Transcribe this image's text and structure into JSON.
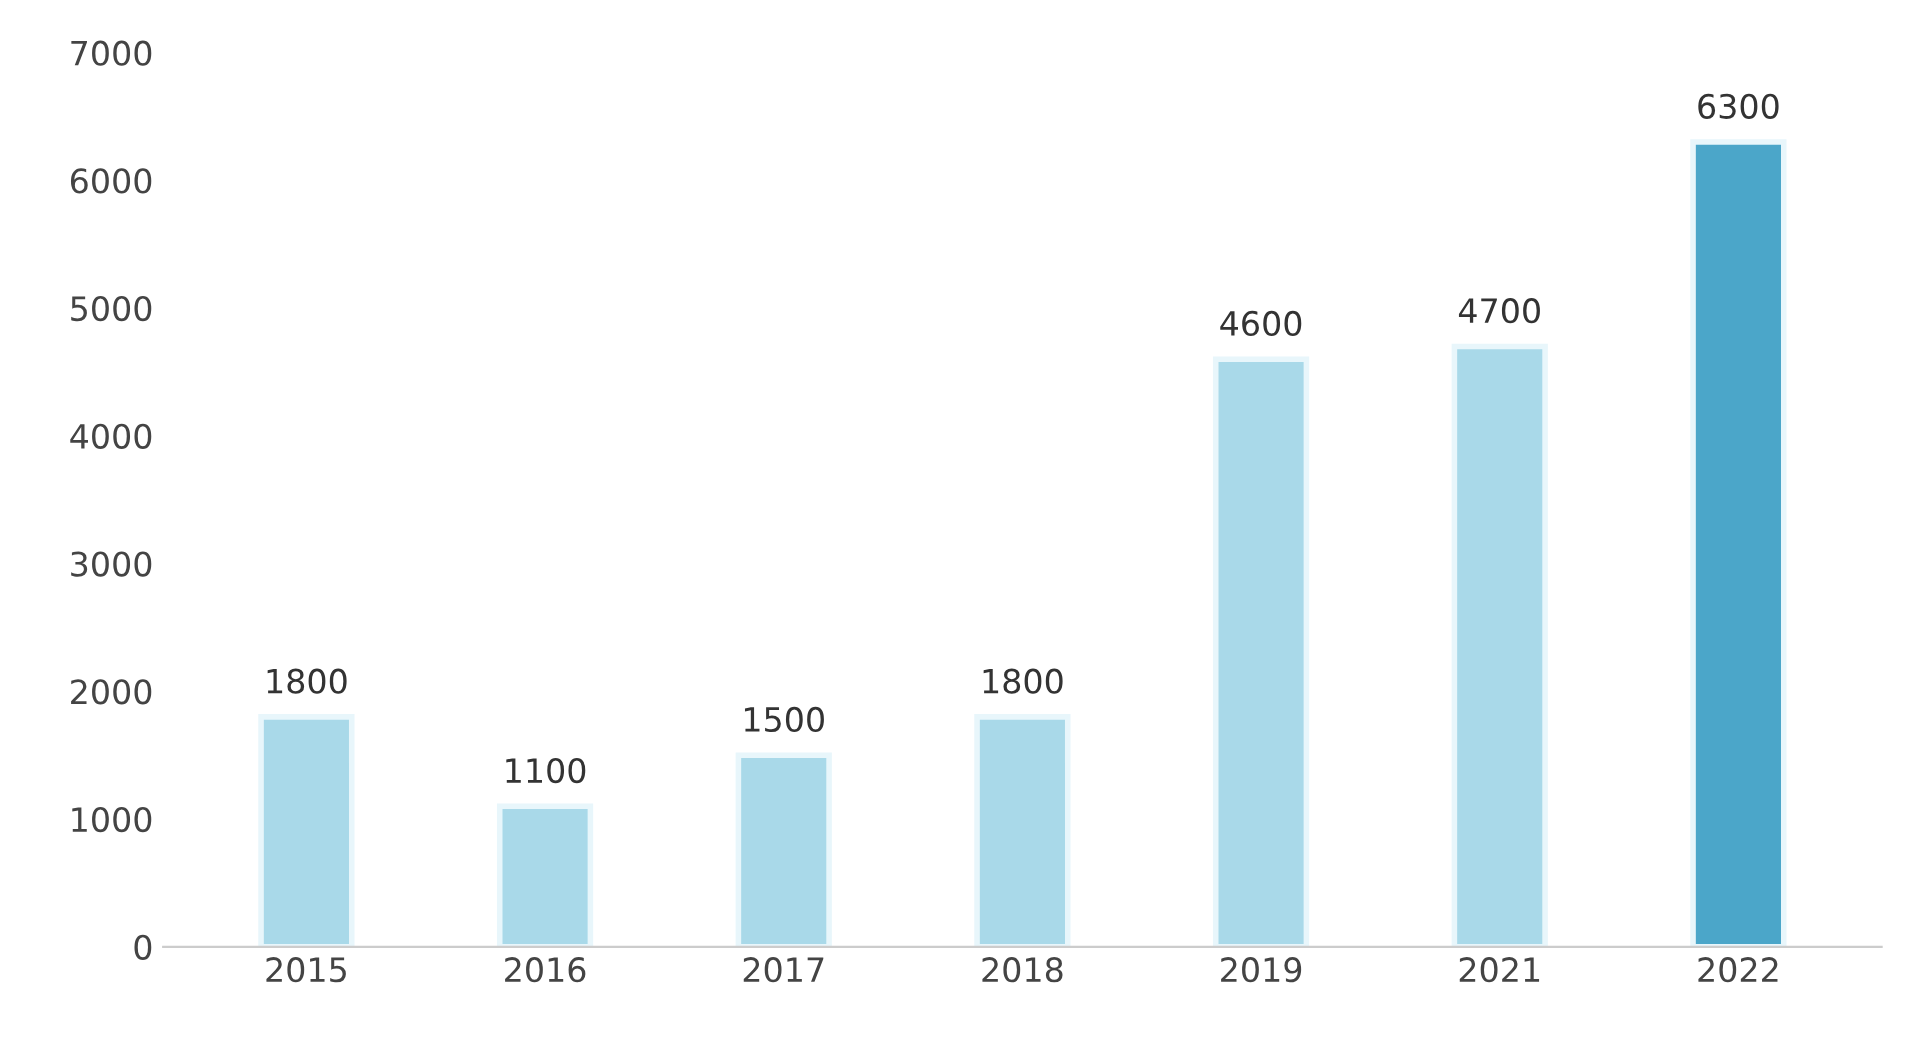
{
  "chart_data": {
    "type": "bar",
    "categories": [
      "2015",
      "2016",
      "2017",
      "2018",
      "2019",
      "2021",
      "2022"
    ],
    "values": [
      1800,
      1100,
      1500,
      1800,
      4600,
      4700,
      6300
    ],
    "colors": [
      "#a9d9e9",
      "#a9d9e9",
      "#a9d9e9",
      "#a9d9e9",
      "#a9d9e9",
      "#a9d9e9",
      "#4ba6c9"
    ],
    "ylim": [
      0,
      7000
    ],
    "yticks": [
      0,
      1000,
      2000,
      3000,
      4000,
      5000,
      6000,
      7000
    ],
    "data_labels": true,
    "grid": false,
    "legend": false
  }
}
